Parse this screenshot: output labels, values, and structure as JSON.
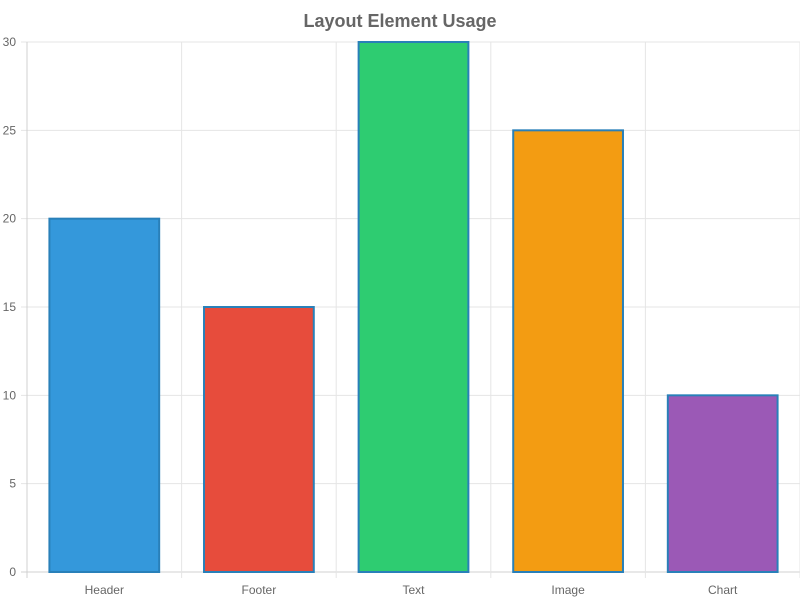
{
  "chart_data": {
    "type": "bar",
    "title": "Layout Element Usage",
    "xlabel": "",
    "ylabel": "",
    "categories": [
      "Header",
      "Footer",
      "Text",
      "Image",
      "Chart"
    ],
    "values": [
      20,
      15,
      30,
      25,
      10
    ],
    "colors": [
      "#3498db",
      "#e74c3c",
      "#2ecc71",
      "#f39c12",
      "#9b59b6"
    ],
    "border_color": "#2980b9",
    "ylim": [
      0,
      30
    ],
    "yticks": [
      0,
      5,
      10,
      15,
      20,
      25,
      30
    ],
    "grid": true,
    "legend": "none"
  }
}
